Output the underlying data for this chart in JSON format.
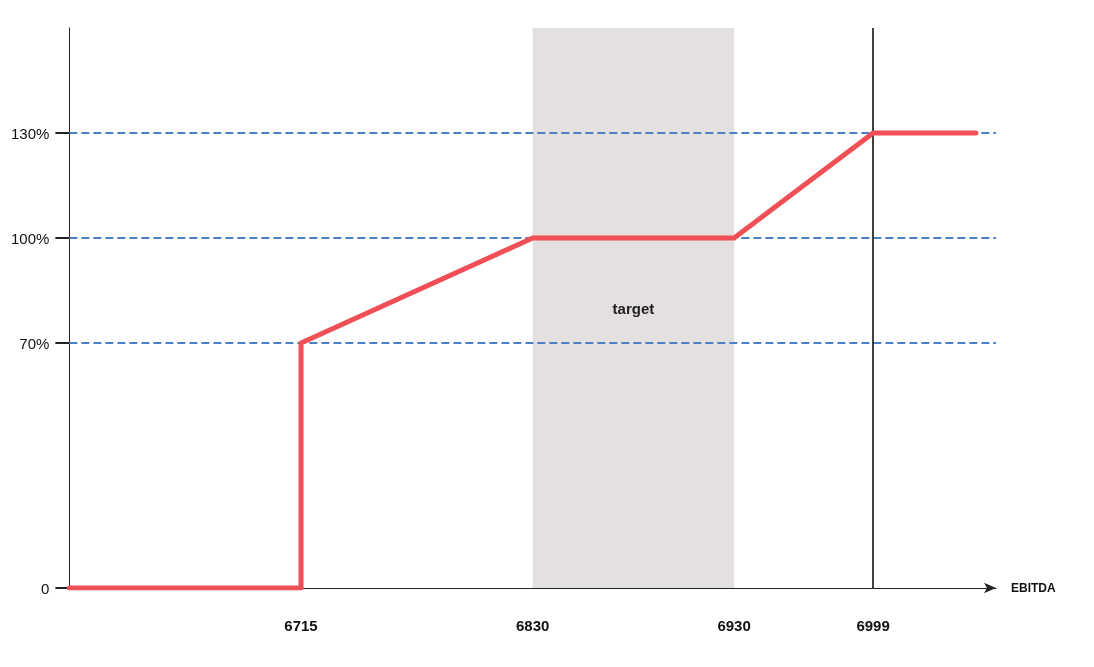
{
  "chart_data": {
    "type": "line",
    "xlabel": "EBITDA",
    "x": [
      6600,
      6715,
      6715,
      6830,
      6930,
      6999,
      7050
    ],
    "values": [
      0,
      0,
      70,
      100,
      100,
      130,
      130
    ],
    "color": "#ef4f55",
    "marker": "none",
    "line_style": "solid",
    "grid": false,
    "xlim": [
      6600,
      7060
    ],
    "xticks": [
      6715,
      6830,
      6930,
      6999
    ],
    "ylim": [
      0,
      160
    ],
    "yticks": [
      0,
      {
        "value": 70,
        "label": "70%"
      },
      {
        "value": 100,
        "label": "100%"
      },
      {
        "value": 130,
        "label": "130%"
      }
    ],
    "bands": [
      {
        "axis": "x",
        "from": 6830,
        "to": 6930,
        "label": "target",
        "color": "#e3e0df"
      }
    ],
    "ref_lines": [
      {
        "axis": "y",
        "value": 70,
        "color": "#4a7fc9",
        "line_style": "dashed"
      },
      {
        "axis": "y",
        "value": 100,
        "color": "#4a7fc9",
        "line_style": "dashed"
      },
      {
        "axis": "y",
        "value": 130,
        "color": "#4a7fc9",
        "line_style": "dashed"
      },
      {
        "axis": "x",
        "value": 6999,
        "color": "#000000",
        "line_style": "solid"
      }
    ]
  }
}
